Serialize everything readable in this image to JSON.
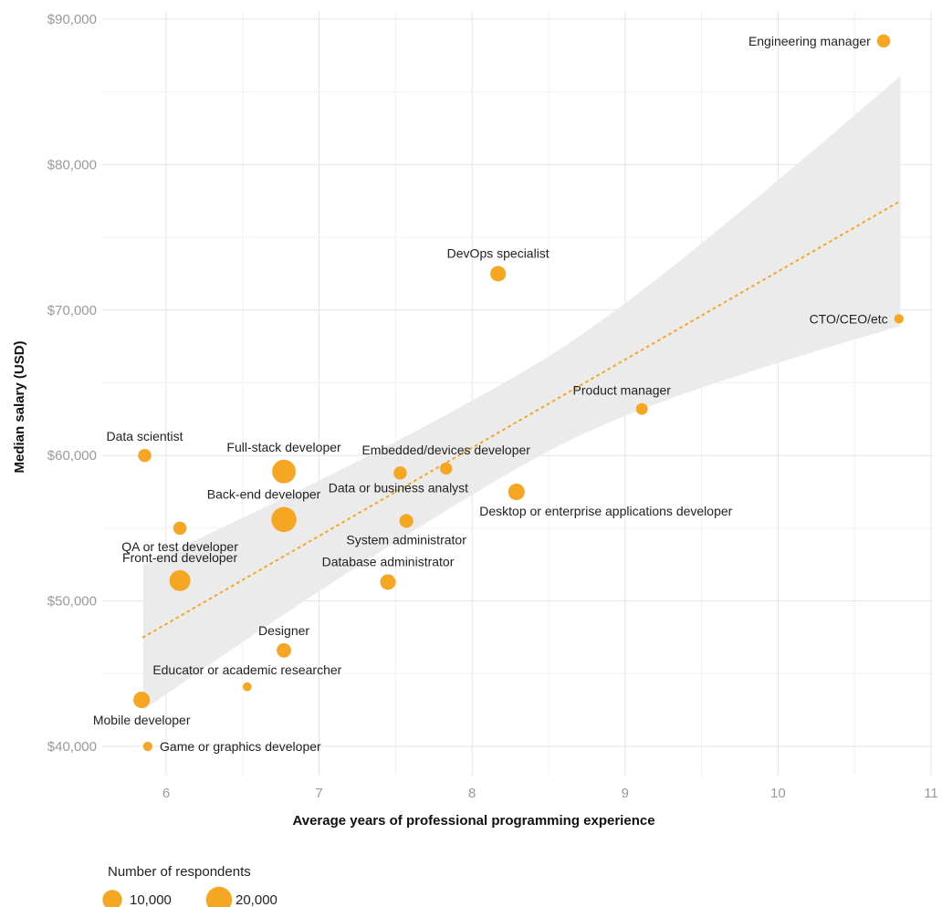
{
  "chart_data": {
    "type": "scatter",
    "title": "",
    "xlabel": "Average years of professional programming experience",
    "ylabel": "Median salary (USD)",
    "xlim": [
      5.6,
      11
    ],
    "ylim": [
      38500,
      91000
    ],
    "x_ticks": [
      6,
      7,
      8,
      9,
      10,
      11
    ],
    "y_ticks": [
      40000,
      50000,
      60000,
      70000,
      80000,
      90000
    ],
    "y_tick_labels": [
      "$40,000",
      "$50,000",
      "$60,000",
      "$70,000",
      "$80,000",
      "$90,000"
    ],
    "grid": true,
    "point_color": "#f5a623",
    "band_color": "#ebebeb",
    "trend": {
      "style": "dotted",
      "x": [
        5.85,
        10.8
      ],
      "y": [
        47500,
        77500
      ],
      "band_lower": [
        42800,
        69300
      ],
      "band_upper": [
        52800,
        86500
      ]
    },
    "points": [
      {
        "label": "Engineering manager",
        "x": 10.69,
        "y": 88500,
        "respondents": 3500,
        "label_pos": "left"
      },
      {
        "label": "DevOps specialist",
        "x": 8.17,
        "y": 72500,
        "respondents": 5500,
        "label_pos": "above"
      },
      {
        "label": "CTO/CEO/etc",
        "x": 10.79,
        "y": 69400,
        "respondents": 1200,
        "label_pos": "left"
      },
      {
        "label": "Product manager",
        "x": 9.11,
        "y": 63200,
        "respondents": 2500,
        "label_pos": "above-left"
      },
      {
        "label": "Data scientist",
        "x": 5.86,
        "y": 60000,
        "respondents": 3500,
        "label_pos": "above"
      },
      {
        "label": "Embedded/devices developer",
        "x": 7.83,
        "y": 59100,
        "respondents": 2800,
        "label_pos": "above"
      },
      {
        "label": "Full-stack developer",
        "x": 6.77,
        "y": 58900,
        "respondents": 16000,
        "label_pos": "above"
      },
      {
        "label": "Data or business analyst",
        "x": 7.53,
        "y": 58800,
        "respondents": 3500,
        "label_pos": "below-left"
      },
      {
        "label": "Desktop or enterprise applications developer",
        "x": 8.29,
        "y": 57500,
        "respondents": 6500,
        "label_pos": "below-right"
      },
      {
        "label": "Back-end developer",
        "x": 6.77,
        "y": 55600,
        "respondents": 18500,
        "label_pos": "above-left"
      },
      {
        "label": "System administrator",
        "x": 7.57,
        "y": 55500,
        "respondents": 4000,
        "label_pos": "below"
      },
      {
        "label": "QA or test developer",
        "x": 6.09,
        "y": 55000,
        "respondents": 3500,
        "label_pos": "below"
      },
      {
        "label": "Front-end developer",
        "x": 6.09,
        "y": 51400,
        "respondents": 12000,
        "label_pos": "above"
      },
      {
        "label": "Database administrator",
        "x": 7.45,
        "y": 51300,
        "respondents": 5500,
        "label_pos": "above"
      },
      {
        "label": "Designer",
        "x": 6.77,
        "y": 46600,
        "respondents": 4500,
        "label_pos": "above"
      },
      {
        "label": "Educator or academic researcher",
        "x": 6.53,
        "y": 44100,
        "respondents": 1000,
        "label_pos": "above"
      },
      {
        "label": "Mobile developer",
        "x": 5.84,
        "y": 43200,
        "respondents": 6500,
        "label_pos": "below"
      },
      {
        "label": "Game or graphics developer",
        "x": 5.88,
        "y": 40000,
        "respondents": 1200,
        "label_pos": "right"
      }
    ],
    "legend": {
      "title": "Number of respondents",
      "placement": "bottom-left",
      "items": [
        {
          "label": "10,000",
          "respondents": 10000
        },
        {
          "label": "20,000",
          "respondents": 20000
        }
      ]
    }
  }
}
